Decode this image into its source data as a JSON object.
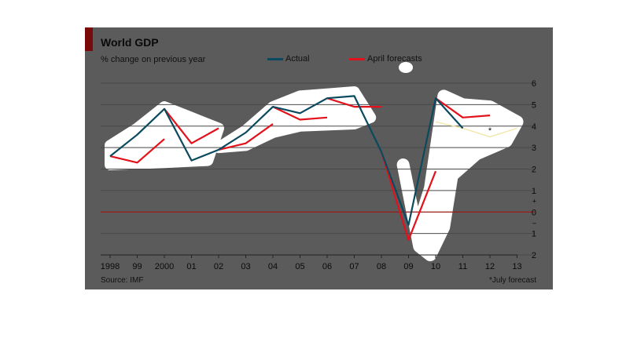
{
  "colors": {
    "panel": "#5b5b5b",
    "accent": "#7a0a0a",
    "actual": "#0b4a5e",
    "forecast": "#e3111b",
    "july_forecast": "#f3e6a4",
    "gridline": "#494949",
    "zero_line": "#9a1a1a",
    "highlight": "#ffffff"
  },
  "chart_data": {
    "type": "line",
    "title": "World GDP",
    "subtitle": "% change on previous year",
    "source": "Source: IMF",
    "footnote": "*July forecast",
    "legend": [
      "Actual",
      "April forecasts"
    ],
    "legend_position": "top-center",
    "x_tick_labels": [
      "1998",
      "99",
      "2000",
      "01",
      "02",
      "03",
      "04",
      "05",
      "06",
      "07",
      "08",
      "09",
      "10",
      "11",
      "12",
      "13"
    ],
    "x_years": [
      1998,
      1999,
      2000,
      2001,
      2002,
      2003,
      2004,
      2005,
      2006,
      2007,
      2008,
      2009,
      2010,
      2011,
      2012,
      2013
    ],
    "y_ticks": [
      6,
      5,
      4,
      3,
      2,
      1,
      0,
      -1,
      -2
    ],
    "y_tick_labels": [
      "6",
      "5",
      "4",
      "3",
      "2",
      "1",
      "0",
      "1",
      "2"
    ],
    "y_sign_labels": [
      "+",
      "–"
    ],
    "ylim": [
      -2,
      6
    ],
    "grid": true,
    "series": [
      {
        "name": "Actual",
        "x": [
          1998,
          1999,
          2000,
          2001,
          2002,
          2003,
          2004,
          2005,
          2006,
          2007,
          2008,
          2009,
          2010,
          2011
        ],
        "values": [
          2.6,
          3.6,
          4.8,
          2.4,
          2.9,
          3.7,
          4.9,
          4.6,
          5.3,
          5.4,
          2.8,
          -0.6,
          5.3,
          3.9
        ]
      },
      {
        "name": "April forecasts",
        "segments": [
          {
            "x": [
              1998,
              1999,
              2000
            ],
            "values": [
              2.6,
              2.3,
              3.4
            ]
          },
          {
            "x": [
              2000,
              2001,
              2002
            ],
            "values": [
              4.8,
              3.2,
              3.9
            ]
          },
          {
            "x": [
              2002,
              2003,
              2004
            ],
            "values": [
              2.9,
              3.2,
              4.1
            ]
          },
          {
            "x": [
              2004,
              2005,
              2006
            ],
            "values": [
              4.9,
              4.3,
              4.4
            ]
          },
          {
            "x": [
              2006,
              2007,
              2008
            ],
            "values": [
              5.3,
              4.9,
              4.9
            ]
          },
          {
            "x": [
              2008,
              2009,
              2010
            ],
            "values": [
              2.8,
              -1.3,
              1.9
            ]
          },
          {
            "x": [
              2010,
              2011,
              2012
            ],
            "values": [
              5.3,
              4.4,
              4.5
            ]
          }
        ]
      },
      {
        "name": "",
        "x": [
          2010,
          2011,
          2012,
          2013
        ],
        "values": [
          4.2,
          3.9,
          3.5,
          3.9
        ]
      }
    ],
    "annotations": [
      {
        "text": "*",
        "x": 2012,
        "y": 3.8
      }
    ]
  }
}
